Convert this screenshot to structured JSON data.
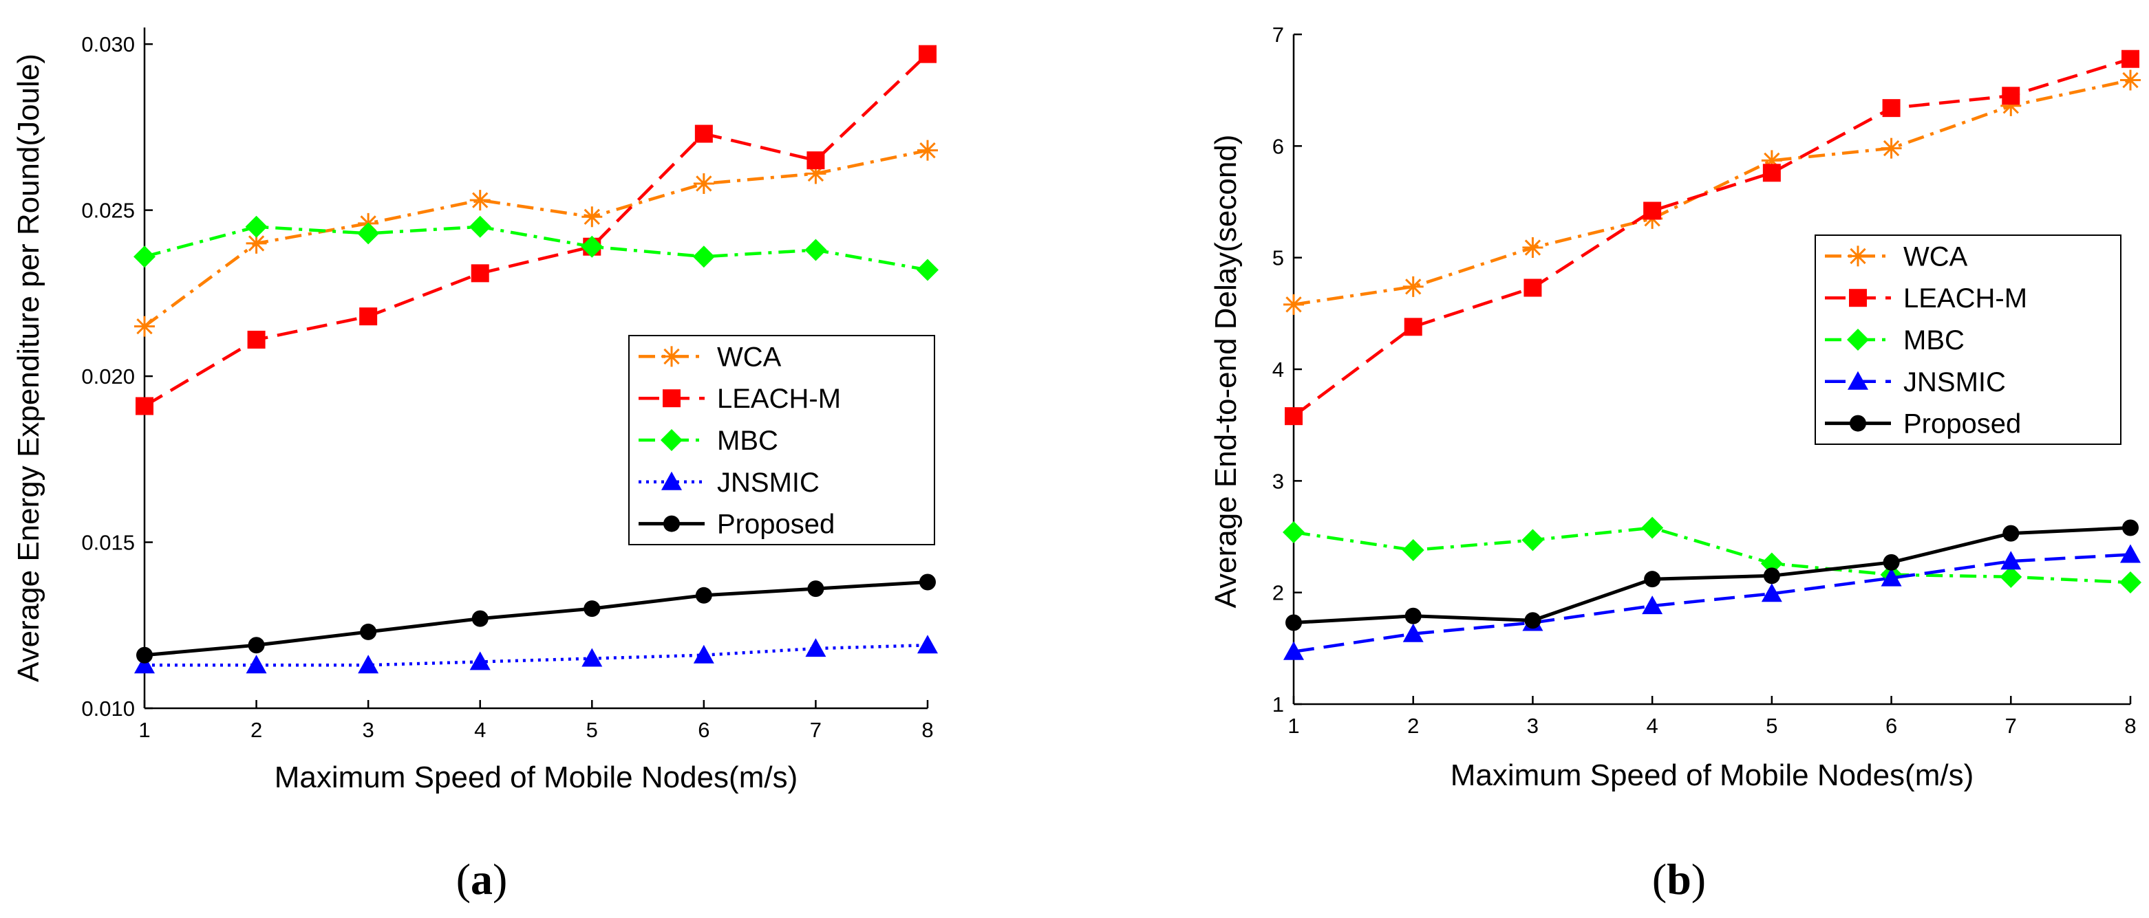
{
  "chart_data": [
    {
      "type": "line",
      "panel_label": "(a)",
      "panel_open": "(",
      "panel_letter": "a",
      "panel_close": ")",
      "xlabel": "Maximum Speed of Mobile Nodes(m/s)",
      "ylabel": "Average Energy Expenditure per Round(Joule)",
      "xlim": [
        1,
        8
      ],
      "ylim": [
        0.01,
        0.0305
      ],
      "xticks": [
        1,
        2,
        3,
        4,
        5,
        6,
        7,
        8
      ],
      "xtick_labels": [
        "1",
        "2",
        "3",
        "4",
        "5",
        "6",
        "7",
        "8"
      ],
      "yticks": [
        0.01,
        0.015,
        0.02,
        0.025,
        0.03
      ],
      "ytick_labels": [
        "0.010",
        "0.015",
        "0.020",
        "0.025",
        "0.030"
      ],
      "legend_position": "center-right",
      "x": [
        1,
        2,
        3,
        4,
        5,
        6,
        7,
        8
      ],
      "series": [
        {
          "name": "WCA",
          "color": "#ff8000",
          "dash": "dashdot",
          "marker": "asterisk",
          "values": [
            0.0215,
            0.024,
            0.0246,
            0.0253,
            0.0248,
            0.0258,
            0.0261,
            0.0268
          ]
        },
        {
          "name": "LEACH-M",
          "color": "#ff0000",
          "dash": "dashed",
          "marker": "square",
          "values": [
            0.0191,
            0.0211,
            0.0218,
            0.0231,
            0.0239,
            0.0273,
            0.0265,
            0.0297
          ]
        },
        {
          "name": "MBC",
          "color": "#00ff00",
          "dash": "dashdot",
          "marker": "diamond",
          "values": [
            0.0236,
            0.0245,
            0.0243,
            0.0245,
            0.0239,
            0.0236,
            0.0238,
            0.0232
          ]
        },
        {
          "name": "JNSMIC",
          "color": "#0000ff",
          "dash": "dotted",
          "marker": "triangle",
          "values": [
            0.0113,
            0.0113,
            0.0113,
            0.0114,
            0.0115,
            0.0116,
            0.0118,
            0.0119
          ]
        },
        {
          "name": "Proposed",
          "color": "#000000",
          "dash": "solid",
          "marker": "circle",
          "values": [
            0.0116,
            0.0119,
            0.0123,
            0.0127,
            0.013,
            0.0134,
            0.0136,
            0.0138
          ]
        }
      ]
    },
    {
      "type": "line",
      "panel_label": "(b)",
      "panel_open": "(",
      "panel_letter": "b",
      "panel_close": ")",
      "xlabel": "Maximum Speed of Mobile Nodes(m/s)",
      "ylabel": "Average End-to-end Delay(second)",
      "xlim": [
        1,
        8
      ],
      "ylim": [
        1,
        7
      ],
      "xticks": [
        1,
        2,
        3,
        4,
        5,
        6,
        7,
        8
      ],
      "xtick_labels": [
        "1",
        "2",
        "3",
        "4",
        "5",
        "6",
        "7",
        "8"
      ],
      "yticks": [
        1,
        2,
        3,
        4,
        5,
        6,
        7
      ],
      "ytick_labels": [
        "1",
        "2",
        "3",
        "4",
        "5",
        "6",
        "7"
      ],
      "legend_position": "center-right",
      "x": [
        1,
        2,
        3,
        4,
        5,
        6,
        7,
        8
      ],
      "series": [
        {
          "name": "WCA",
          "color": "#ff8000",
          "dash": "dashdot",
          "marker": "asterisk",
          "values": [
            4.58,
            4.74,
            5.09,
            5.35,
            5.87,
            5.98,
            6.36,
            6.59
          ]
        },
        {
          "name": "LEACH-M",
          "color": "#ff0000",
          "dash": "dashed",
          "marker": "square",
          "values": [
            3.58,
            4.38,
            4.73,
            5.42,
            5.76,
            6.34,
            6.45,
            6.78
          ]
        },
        {
          "name": "MBC",
          "color": "#00ff00",
          "dash": "dashdot",
          "marker": "diamond",
          "values": [
            2.54,
            2.38,
            2.47,
            2.58,
            2.26,
            2.16,
            2.14,
            2.09
          ]
        },
        {
          "name": "JNSMIC",
          "color": "#0000ff",
          "dash": "dashed",
          "marker": "triangle",
          "values": [
            1.47,
            1.63,
            1.73,
            1.88,
            1.99,
            2.13,
            2.28,
            2.34
          ]
        },
        {
          "name": "Proposed",
          "color": "#000000",
          "dash": "solid",
          "marker": "circle",
          "values": [
            1.73,
            1.79,
            1.75,
            2.12,
            2.15,
            2.27,
            2.53,
            2.58
          ]
        }
      ]
    }
  ]
}
